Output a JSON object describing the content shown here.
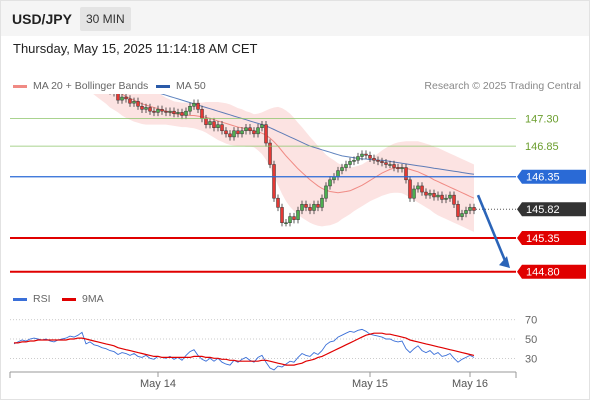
{
  "header": {
    "symbol": "USD/JPY",
    "timeframe": "30 MIN"
  },
  "datetime": "Thursday, May 15, 2025 11:14:18 AM CET",
  "legend": {
    "ma20_label": "MA 20 + Bollinger Bands",
    "ma20_color": "#f08a84",
    "ma50_label": "MA 50",
    "ma50_color": "#2a5aa8",
    "credit": "Research © 2025 Trading Central"
  },
  "chart_data": [
    {
      "type": "candlestick",
      "title": "",
      "y_range": [
        144.6,
        147.7
      ],
      "x_ticks": [
        "May 14",
        "May 15",
        "May 16"
      ],
      "last_price": "145.82",
      "levels": [
        {
          "value": "147.30",
          "kind": "resistance-minor",
          "color": "#8cc46a"
        },
        {
          "value": "146.85",
          "kind": "resistance-minor",
          "color": "#8cc46a"
        },
        {
          "value": "146.35",
          "kind": "pivot",
          "color": "#2a6ad6"
        },
        {
          "value": "145.35",
          "kind": "support",
          "color": "#e00000"
        },
        {
          "value": "144.80",
          "kind": "support",
          "color": "#e00000"
        }
      ],
      "closes": [
        147.95,
        147.97,
        148.0,
        147.97,
        148.02,
        148.05,
        148.02,
        148.0,
        148.02,
        147.98,
        147.95,
        148.0,
        148.03,
        148.05,
        148.1,
        148.08,
        148.12,
        148.18,
        147.95,
        147.98,
        147.93,
        147.9,
        147.85,
        147.8,
        147.75,
        147.72,
        147.6,
        147.65,
        147.62,
        147.55,
        147.58,
        147.5,
        147.45,
        147.48,
        147.42,
        147.4,
        147.45,
        147.42,
        147.4,
        147.42,
        147.38,
        147.4,
        147.35,
        147.42,
        147.5,
        147.55,
        147.45,
        147.3,
        147.2,
        147.25,
        147.15,
        147.2,
        147.1,
        147.05,
        147.0,
        147.1,
        147.05,
        147.1,
        147.15,
        147.1,
        147.05,
        147.15,
        147.2,
        146.9,
        146.55,
        146.0,
        145.85,
        145.6,
        145.6,
        145.7,
        145.65,
        145.8,
        145.9,
        145.85,
        145.8,
        145.9,
        145.85,
        146.0,
        146.2,
        146.3,
        146.35,
        146.45,
        146.5,
        146.55,
        146.6,
        146.62,
        146.68,
        146.72,
        146.7,
        146.65,
        146.62,
        146.6,
        146.58,
        146.55,
        146.55,
        146.5,
        146.48,
        146.5,
        146.3,
        146.0,
        146.15,
        146.2,
        146.1,
        146.05,
        146.08,
        146.02,
        146.05,
        145.98,
        146.0,
        146.05,
        145.9,
        145.7,
        145.75,
        145.8,
        145.85,
        145.8
      ],
      "ma20": [
        147.9,
        147.92,
        147.94,
        147.95,
        147.96,
        147.97,
        147.98,
        147.99,
        148.0,
        148.0,
        148.01,
        148.02,
        148.02,
        148.03,
        148.03,
        148.03,
        148.02,
        148.0,
        147.98,
        147.96,
        147.93,
        147.9,
        147.87,
        147.84,
        147.8,
        147.77,
        147.74,
        147.7,
        147.66,
        147.63,
        147.6,
        147.57,
        147.54,
        147.52,
        147.5,
        147.48,
        147.46,
        147.44,
        147.42,
        147.4,
        147.38,
        147.37,
        147.36,
        147.36,
        147.35,
        147.35,
        147.34,
        147.33,
        147.32,
        147.3,
        147.28,
        147.26,
        147.24,
        147.22,
        147.2,
        147.18,
        147.16,
        147.15,
        147.13,
        147.12,
        147.1,
        147.08,
        147.06,
        147.03,
        146.98,
        146.92,
        146.85,
        146.77,
        146.69,
        146.62,
        146.55,
        146.48,
        146.42,
        146.36,
        146.3,
        146.25,
        146.2,
        146.16,
        146.13,
        146.11,
        146.1,
        146.09,
        146.1,
        146.11,
        146.12,
        146.15,
        146.18,
        146.21,
        146.25,
        146.29,
        146.33,
        146.37,
        146.41,
        146.44,
        146.47,
        146.49,
        146.5,
        146.5,
        146.49,
        146.47,
        146.45,
        146.43,
        146.4,
        146.37,
        146.34,
        146.3,
        146.27,
        146.24,
        146.21,
        146.18,
        146.15,
        146.12,
        146.09,
        146.06,
        146.03,
        146.0
      ],
      "ma50": [
        148.02,
        148.03,
        148.04,
        148.05,
        148.06,
        148.07,
        148.08,
        148.09,
        148.1,
        148.11,
        148.11,
        148.11,
        148.11,
        148.11,
        148.1,
        148.09,
        148.08,
        148.07,
        148.06,
        148.05,
        148.04,
        148.02,
        148.0,
        147.98,
        147.96,
        147.94,
        147.92,
        147.9,
        147.88,
        147.86,
        147.84,
        147.82,
        147.8,
        147.78,
        147.76,
        147.74,
        147.72,
        147.7,
        147.68,
        147.66,
        147.64,
        147.62,
        147.6,
        147.58,
        147.56,
        147.54,
        147.52,
        147.5,
        147.48,
        147.46,
        147.44,
        147.42,
        147.4,
        147.38,
        147.36,
        147.34,
        147.32,
        147.3,
        147.28,
        147.26,
        147.24,
        147.22,
        147.2,
        147.18,
        147.15,
        147.12,
        147.09,
        147.06,
        147.03,
        147.0,
        146.97,
        146.94,
        146.91,
        146.88,
        146.85,
        146.83,
        146.81,
        146.79,
        146.77,
        146.75,
        146.73,
        146.71,
        146.69,
        146.68,
        146.67,
        146.66,
        146.65,
        146.64,
        146.64,
        146.63,
        146.63,
        146.62,
        146.62,
        146.61,
        146.6,
        146.59,
        146.58,
        146.57,
        146.56,
        146.55,
        146.54,
        146.53,
        146.52,
        146.51,
        146.5,
        146.49,
        146.48,
        146.47,
        146.46,
        146.45,
        146.44,
        146.43,
        146.42,
        146.41,
        146.4,
        146.39
      ],
      "band_width": [
        0.17,
        0.17,
        0.17,
        0.17,
        0.17,
        0.17,
        0.17,
        0.17,
        0.17,
        0.17,
        0.17,
        0.17,
        0.17,
        0.17,
        0.18,
        0.18,
        0.19,
        0.2,
        0.21,
        0.22,
        0.24,
        0.26,
        0.28,
        0.3,
        0.32,
        0.33,
        0.34,
        0.35,
        0.35,
        0.35,
        0.35,
        0.34,
        0.33,
        0.32,
        0.3,
        0.28,
        0.26,
        0.24,
        0.22,
        0.21,
        0.2,
        0.2,
        0.2,
        0.2,
        0.2,
        0.21,
        0.22,
        0.23,
        0.25,
        0.27,
        0.29,
        0.31,
        0.32,
        0.33,
        0.33,
        0.32,
        0.31,
        0.3,
        0.29,
        0.28,
        0.27,
        0.3,
        0.34,
        0.4,
        0.48,
        0.56,
        0.64,
        0.7,
        0.74,
        0.76,
        0.76,
        0.75,
        0.74,
        0.72,
        0.7,
        0.68,
        0.65,
        0.62,
        0.58,
        0.55,
        0.52,
        0.48,
        0.44,
        0.41,
        0.38,
        0.36,
        0.35,
        0.34,
        0.34,
        0.34,
        0.35,
        0.36,
        0.37,
        0.38,
        0.39,
        0.4,
        0.41,
        0.42,
        0.44,
        0.46,
        0.48,
        0.5,
        0.51,
        0.52,
        0.53,
        0.54,
        0.55,
        0.55,
        0.55,
        0.55,
        0.55,
        0.55,
        0.55,
        0.55,
        0.55,
        0.55
      ]
    },
    {
      "type": "line",
      "title": "",
      "y_range": [
        20,
        78
      ],
      "y_ticks": [
        "70",
        "50",
        "30"
      ],
      "series": [
        {
          "name": "RSI",
          "color": "#3a6fd8",
          "values": [
            45,
            47,
            49,
            48,
            50,
            51,
            50,
            49,
            50,
            48,
            47,
            49,
            50,
            51,
            53,
            52,
            54,
            57,
            45,
            47,
            44,
            43,
            41,
            40,
            38,
            37,
            34,
            36,
            35,
            33,
            35,
            32,
            31,
            33,
            30,
            29,
            32,
            31,
            30,
            32,
            29,
            31,
            28,
            33,
            37,
            39,
            33,
            29,
            27,
            30,
            27,
            30,
            26,
            24,
            23,
            28,
            26,
            29,
            31,
            28,
            26,
            31,
            33,
            26,
            20,
            18,
            22,
            21,
            24,
            27,
            26,
            31,
            35,
            33,
            32,
            36,
            34,
            38,
            44,
            47,
            48,
            52,
            54,
            56,
            58,
            57,
            59,
            60,
            58,
            55,
            54,
            53,
            52,
            50,
            50,
            48,
            47,
            48,
            40,
            36,
            40,
            43,
            38,
            36,
            38,
            34,
            36,
            32,
            33,
            35,
            30,
            26,
            29,
            31,
            33,
            31
          ]
        },
        {
          "name": "9MA",
          "color": "#e00000",
          "values": [
            46,
            46,
            47,
            47,
            48,
            48,
            49,
            49,
            49,
            49,
            49,
            49,
            49,
            49,
            50,
            50,
            51,
            51,
            50,
            49,
            48,
            47,
            46,
            45,
            44,
            43,
            41,
            40,
            39,
            38,
            37,
            36,
            35,
            34,
            33,
            32,
            32,
            31,
            31,
            31,
            31,
            31,
            31,
            31,
            31,
            32,
            32,
            32,
            31,
            31,
            30,
            30,
            29,
            29,
            28,
            28,
            27,
            27,
            27,
            27,
            27,
            27,
            28,
            28,
            27,
            26,
            25,
            24,
            23,
            23,
            23,
            24,
            25,
            27,
            28,
            29,
            31,
            32,
            34,
            36,
            38,
            40,
            42,
            44,
            46,
            48,
            50,
            52,
            54,
            55,
            56,
            56,
            56,
            55,
            55,
            54,
            53,
            52,
            51,
            49,
            48,
            47,
            46,
            45,
            44,
            43,
            42,
            41,
            40,
            39,
            38,
            37,
            36,
            35,
            34,
            33
          ]
        }
      ]
    }
  ]
}
